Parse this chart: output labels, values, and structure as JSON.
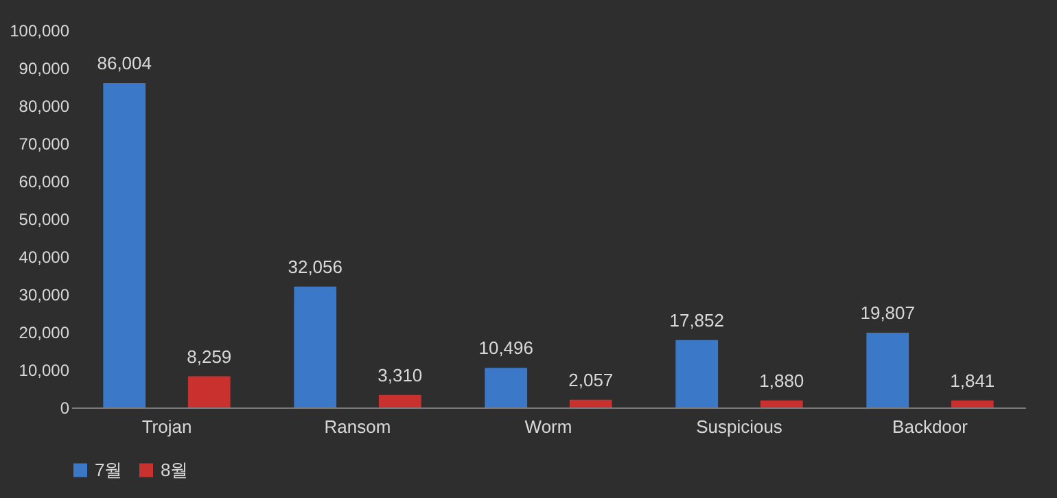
{
  "chart_data": {
    "type": "bar",
    "categories": [
      "Trojan",
      "Ransom",
      "Worm",
      "Suspicious",
      "Backdoor"
    ],
    "series": [
      {
        "name": "7월",
        "color": "#3b78c8",
        "values": [
          86004,
          32056,
          10496,
          17852,
          19807
        ],
        "value_labels": [
          "86,004",
          "32,056",
          "10,496",
          "17,852",
          "19,807"
        ]
      },
      {
        "name": "8월",
        "color": "#c8312e",
        "values": [
          8259,
          3310,
          2057,
          1880,
          1841
        ],
        "value_labels": [
          "8,259",
          "3,310",
          "2,057",
          "1,880",
          "1,841"
        ]
      }
    ],
    "ylim": [
      0,
      100000
    ],
    "yticks": [
      {
        "value": 0,
        "label": "0"
      },
      {
        "value": 10000,
        "label": "10,000"
      },
      {
        "value": 20000,
        "label": "20,000"
      },
      {
        "value": 30000,
        "label": "30,000"
      },
      {
        "value": 40000,
        "label": "40,000"
      },
      {
        "value": 50000,
        "label": "50,000"
      },
      {
        "value": 60000,
        "label": "60,000"
      },
      {
        "value": 70000,
        "label": "70,000"
      },
      {
        "value": 80000,
        "label": "80,000"
      },
      {
        "value": 90000,
        "label": "90,000"
      },
      {
        "value": 100000,
        "label": "100,000"
      }
    ],
    "legend": "bottom",
    "grid": false
  }
}
